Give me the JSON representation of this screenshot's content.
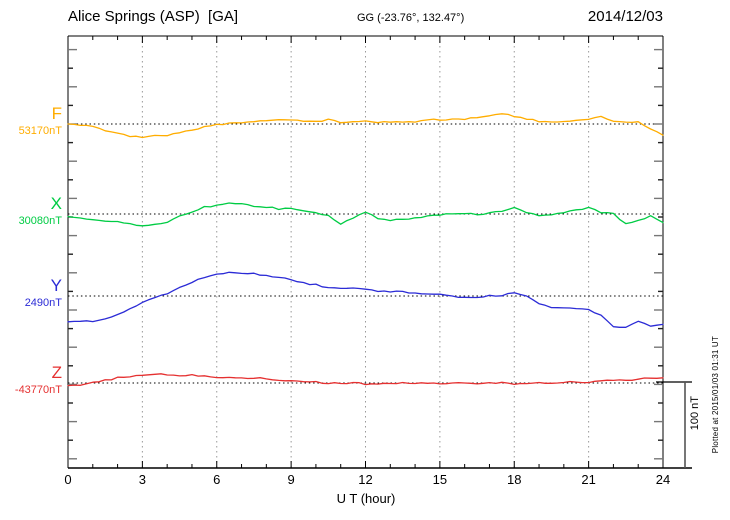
{
  "header": {
    "station": "Alice Springs (ASP)  [GA]",
    "coords": "GG (-23.76°, 132.47°)",
    "date": "2014/12/03"
  },
  "axis": {
    "xlabel": "U T (hour)"
  },
  "scale_bar": {
    "label": "100 nT"
  },
  "watermark": "Plotted at 2015/01/03 01:31 UT",
  "channels": [
    {
      "id": "F",
      "label": "F",
      "baseline_label": "53170nT",
      "color": "#FFAD00"
    },
    {
      "id": "X",
      "label": "X",
      "baseline_label": "30080nT",
      "color": "#00CC44"
    },
    {
      "id": "Y",
      "label": "Y",
      "baseline_label": "2490nT",
      "color": "#2B2BD6"
    },
    {
      "id": "Z",
      "label": "Z",
      "baseline_label": "-43770nT",
      "color": "#E53030"
    }
  ],
  "chart_data": {
    "type": "line",
    "title": "Alice Springs (ASP) [GA] magnetogram, 2014/12/03",
    "xlabel": "U T (hour)",
    "x_range": [
      0,
      24
    ],
    "x_step_hours": 0.5,
    "x_ticks": [
      0,
      3,
      6,
      9,
      12,
      15,
      18,
      21,
      24
    ],
    "grid": "vertical dotted gridlines every 3 hours; dotted zero baseline per channel",
    "scale_bar_nT": 100,
    "legend_position": "left margin, per-trace colored labels",
    "series": [
      {
        "name": "F",
        "baseline_nT": 53170,
        "color": "#FFAD00",
        "offsets_nT": [
          0,
          -1,
          -3,
          -7,
          -10,
          -14,
          -15,
          -14,
          -13,
          -10,
          -7,
          -3,
          -1,
          1,
          2,
          3,
          3,
          5,
          5,
          3,
          3,
          5,
          2,
          3,
          3,
          2,
          2,
          3,
          3,
          5,
          5,
          5,
          6,
          8,
          10,
          12,
          9,
          6,
          3,
          2,
          3,
          5,
          6,
          8,
          3,
          2,
          2,
          -5,
          -13
        ]
      },
      {
        "name": "X",
        "baseline_nT": 30080,
        "color": "#00CC44",
        "offsets_nT": [
          -3,
          -5,
          -7,
          -8,
          -9,
          -12,
          -13,
          -12,
          -9,
          -3,
          2,
          8,
          10,
          12,
          12,
          9,
          8,
          6,
          6,
          3,
          1,
          -2,
          -12,
          -5,
          2,
          -5,
          -7,
          -6,
          -5,
          -3,
          -1,
          0,
          1,
          -1,
          1,
          3,
          8,
          2,
          -2,
          -1,
          1,
          5,
          7,
          2,
          0,
          -12,
          -8,
          -2,
          -10
        ]
      },
      {
        "name": "Y",
        "baseline_nT": 2490,
        "color": "#2B2BD6",
        "offsets_nT": [
          -30,
          -29,
          -30,
          -27,
          -22,
          -15,
          -8,
          -2,
          3,
          10,
          16,
          22,
          26,
          27,
          27,
          26,
          24,
          22,
          19,
          15,
          13,
          10,
          9,
          9,
          8,
          6,
          5,
          5,
          3,
          3,
          2,
          0,
          -2,
          -1,
          0,
          1,
          3,
          0,
          -9,
          -13,
          -14,
          -15,
          -16,
          -23,
          -35,
          -36,
          -30,
          -35,
          -33
        ]
      },
      {
        "name": "Z",
        "baseline_nT": -43770,
        "color": "#E53030",
        "offsets_nT": [
          -3,
          -2,
          1,
          3,
          6,
          7,
          9,
          10,
          10,
          9,
          9,
          8,
          7,
          7,
          6,
          6,
          5,
          3,
          2,
          1,
          1,
          0,
          0,
          0,
          -1,
          -1,
          -1,
          0,
          -1,
          0,
          -1,
          0,
          0,
          -1,
          0,
          0,
          -1,
          0,
          0,
          0,
          1,
          1,
          1,
          2,
          3,
          3,
          5,
          5,
          6
        ]
      }
    ]
  }
}
